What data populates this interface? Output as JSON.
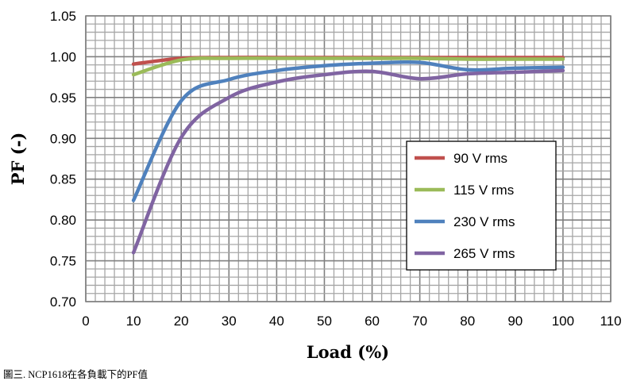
{
  "chart_data": {
    "type": "line",
    "title": "",
    "xlabel": "Load (%)",
    "ylabel": "PF (-)",
    "xlim": [
      0,
      110
    ],
    "ylim": [
      0.7,
      1.05
    ],
    "x_ticks": [
      0,
      10,
      20,
      30,
      40,
      50,
      60,
      70,
      80,
      90,
      100,
      110
    ],
    "y_ticks": [
      "0.70",
      "0.75",
      "0.80",
      "0.85",
      "0.90",
      "0.95",
      "1.00",
      "1.05"
    ],
    "grid": true,
    "legend_position": "inside-right",
    "x": [
      10,
      20,
      30,
      40,
      50,
      60,
      70,
      80,
      90,
      100
    ],
    "series": [
      {
        "name": "90 V rms",
        "color": "#C0504D",
        "values": [
          0.991,
          0.998,
          0.999,
          0.999,
          0.999,
          0.999,
          0.999,
          0.999,
          0.999,
          0.999
        ]
      },
      {
        "name": "115 V rms",
        "color": "#9BBB59",
        "values": [
          0.978,
          0.996,
          0.998,
          0.998,
          0.998,
          0.998,
          0.998,
          0.997,
          0.997,
          0.997
        ]
      },
      {
        "name": "230 V rms",
        "color": "#4F81BD",
        "values": [
          0.824,
          0.946,
          0.972,
          0.983,
          0.989,
          0.992,
          0.993,
          0.984,
          0.986,
          0.987
        ]
      },
      {
        "name": "265 V rms",
        "color": "#8064A2",
        "values": [
          0.76,
          0.901,
          0.95,
          0.969,
          0.978,
          0.982,
          0.973,
          0.979,
          0.981,
          0.983
        ]
      }
    ]
  },
  "caption": "圖三. NCP1618在各負載下的PF值"
}
